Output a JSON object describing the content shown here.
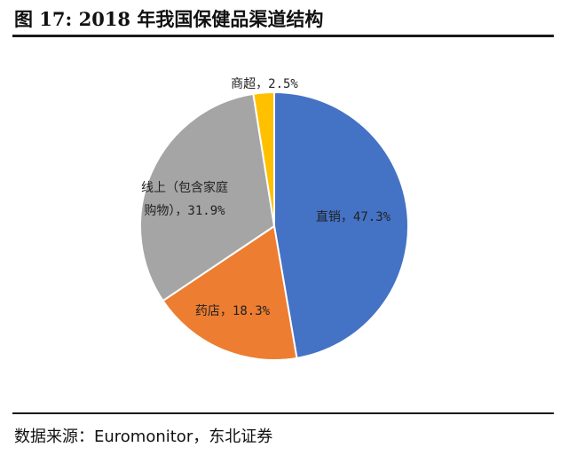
{
  "title": "图 17: 2018 年我国保健品渠道结构",
  "source": "数据来源：Euromonitor，东北证券",
  "chart_data": {
    "type": "pie",
    "title": "图 17: 2018 年我国保健品渠道结构",
    "start_angle_deg": 0,
    "direction": "clockwise",
    "slices": [
      {
        "name": "直销",
        "value": 47.3,
        "label_lines": [
          "直销，47.3%"
        ],
        "color": "#4472C4"
      },
      {
        "name": "药店",
        "value": 18.3,
        "label_lines": [
          "药店，18.3%"
        ],
        "color": "#ED7D31"
      },
      {
        "name": "线上（包含家庭购物）",
        "value": 31.9,
        "label_lines": [
          "线上（包含家庭",
          "购物），31.9%"
        ],
        "color": "#A5A5A5"
      },
      {
        "name": "商超",
        "value": 2.5,
        "label_lines": [
          "商超，2.5%"
        ],
        "color": "#FFC000"
      }
    ]
  }
}
